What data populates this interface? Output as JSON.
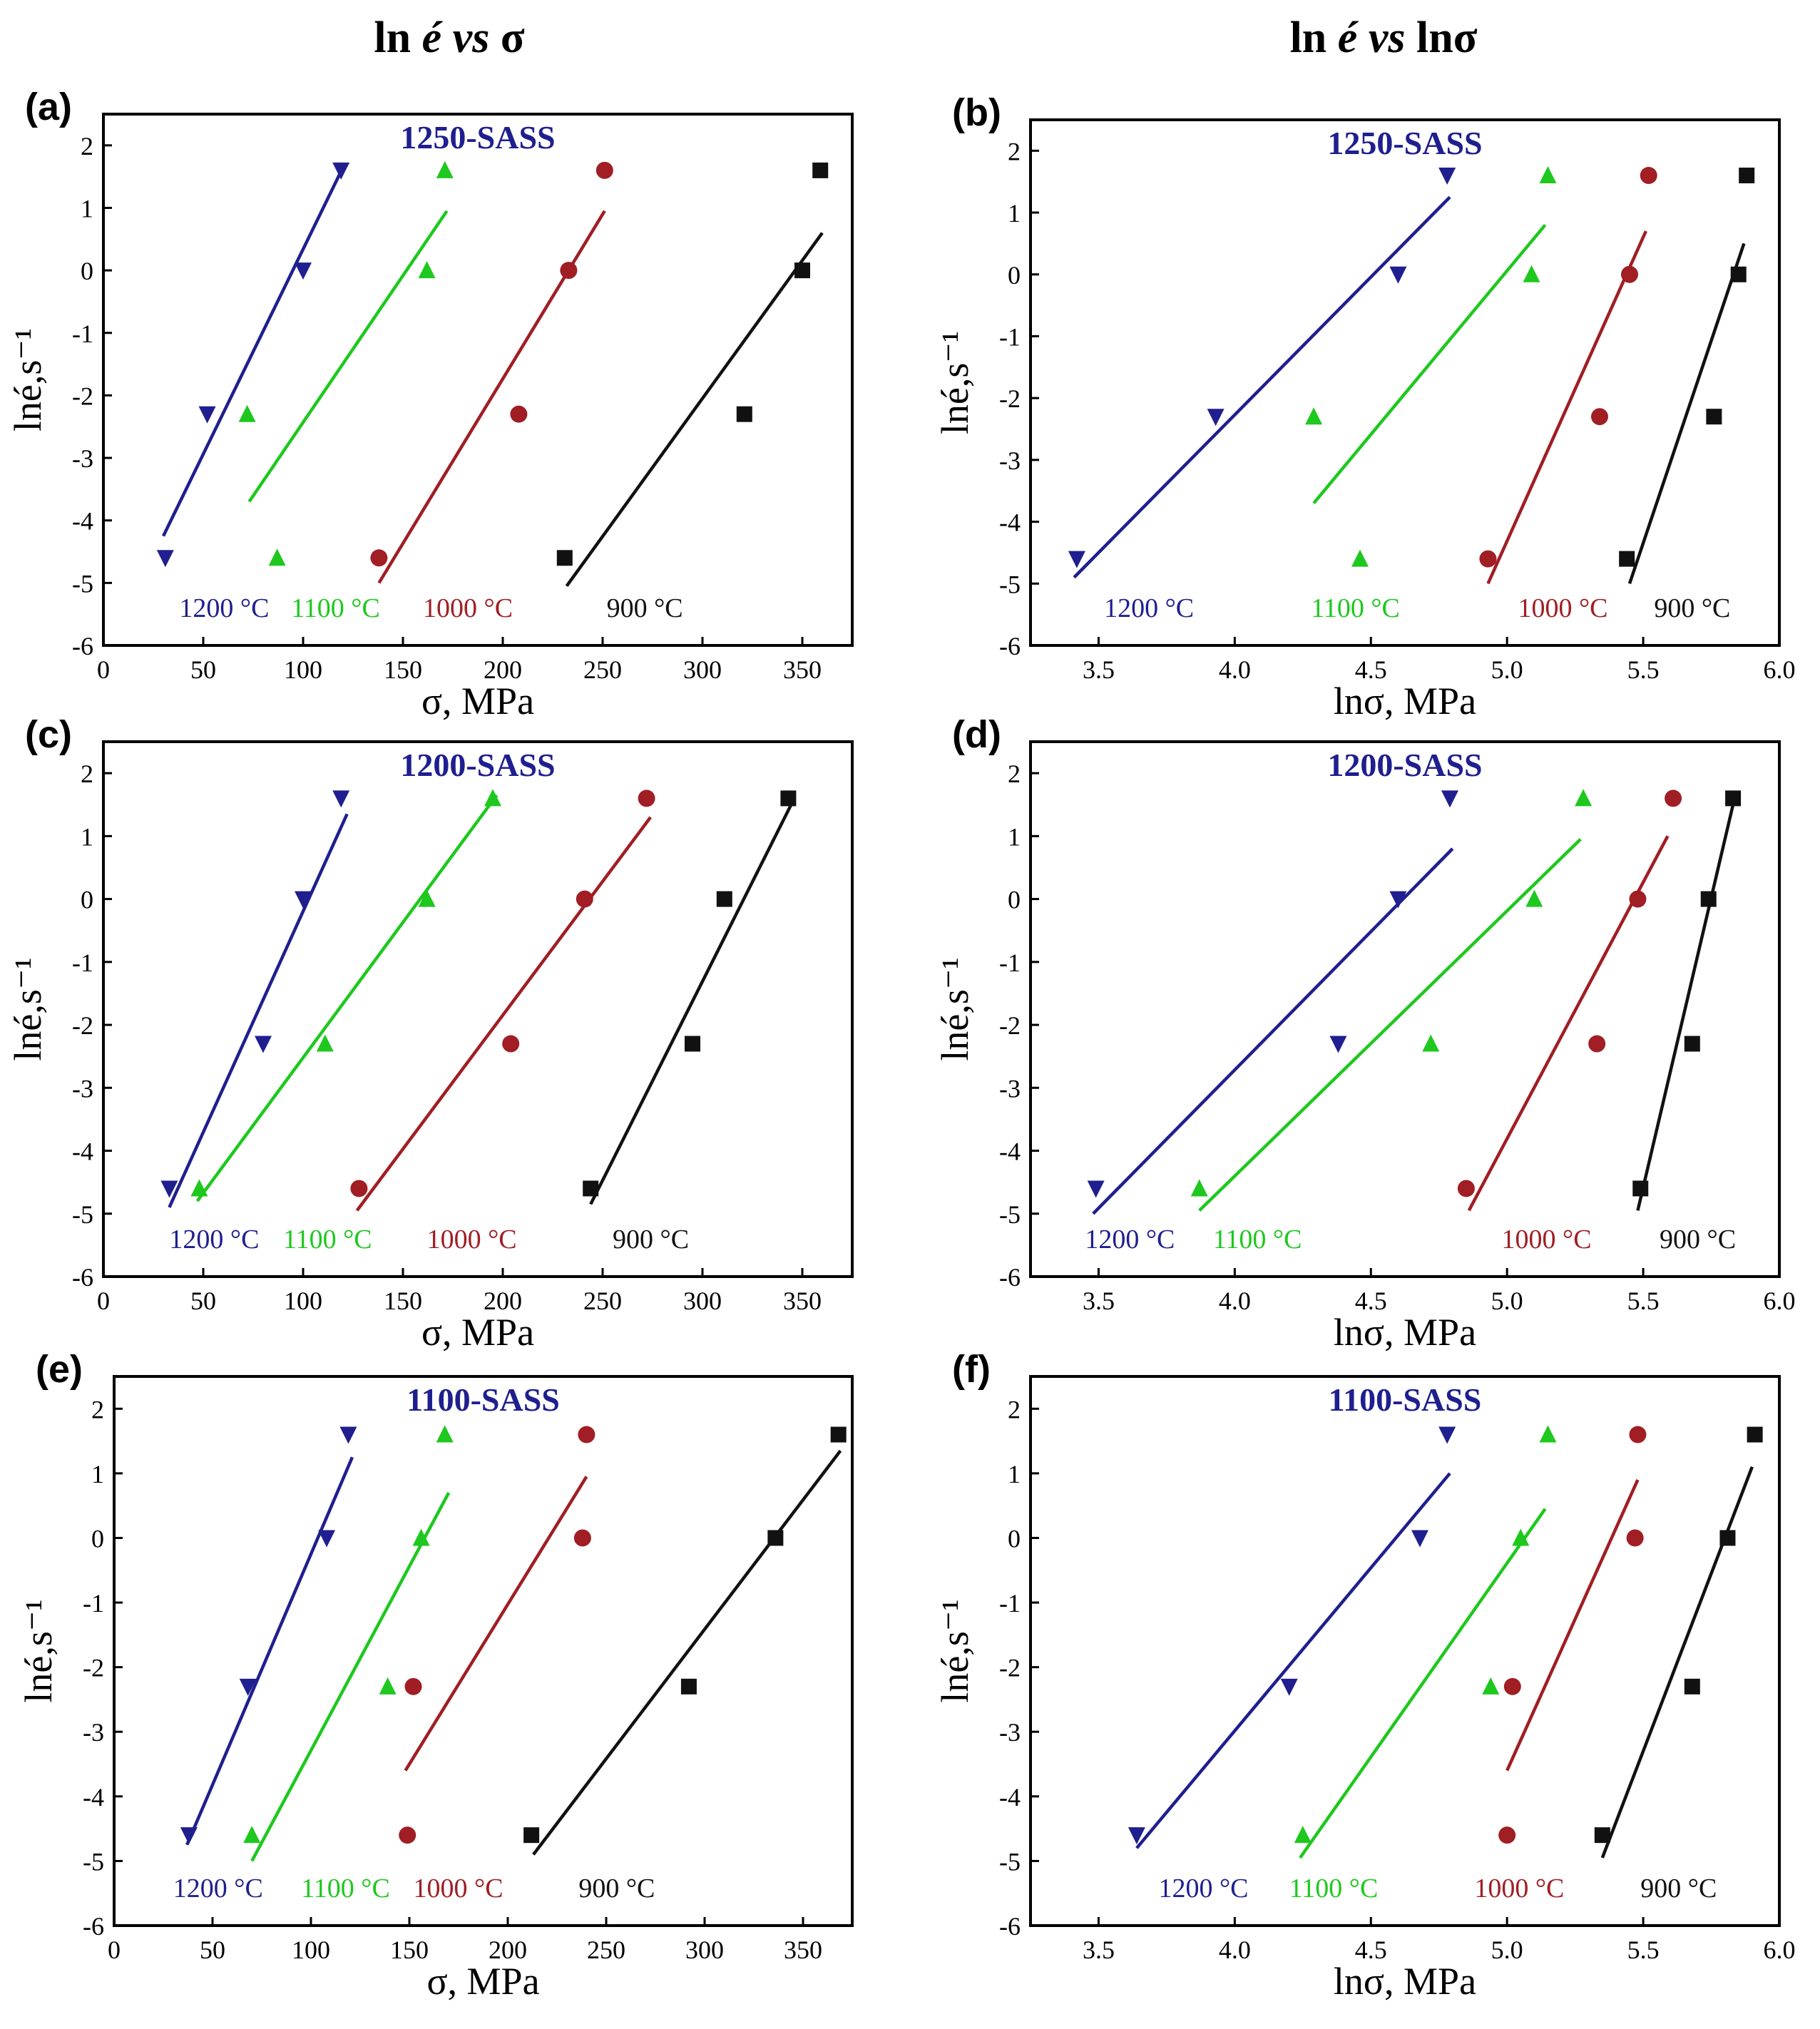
{
  "figure": {
    "col_titles": {
      "left": {
        "pre": "ln ",
        "var": "é",
        "mid": " vs ",
        "post": "σ"
      },
      "right": {
        "pre": "ln ",
        "var": "é",
        "mid": " vs ",
        "post": "lnσ"
      }
    }
  },
  "colors": {
    "1200": "#1f1f8f",
    "1100": "#1ec81e",
    "1000": "#a01e24",
    "900": "#111111"
  },
  "chart_data": [
    {
      "panel": "(a)",
      "type": "scatter",
      "title": "1250-SASS",
      "xlabel": "σ, MPa",
      "ylabel": "lné,s⁻¹",
      "xlim": [
        0,
        375
      ],
      "ylim": [
        -6,
        2.5
      ],
      "xticks": [
        0,
        50,
        100,
        150,
        200,
        250,
        300,
        350
      ],
      "xtick_labels": [
        "0",
        "50",
        "100",
        "150",
        "200",
        "250",
        "300",
        "350"
      ],
      "yticks": [
        2,
        1,
        0,
        -1,
        -2,
        -3,
        -4,
        -5,
        -6
      ],
      "ytick_labels": [
        "2",
        "1",
        "0",
        "-1",
        "-2",
        "-3",
        "-4",
        "-5",
        "-6"
      ],
      "series": [
        {
          "name": "1200 °C",
          "key": "1200",
          "marker": "tri-down",
          "x": [
            31,
            52,
            100,
            119
          ],
          "y": [
            -4.6,
            -2.3,
            0,
            1.6
          ],
          "fit": [
            [
              30,
              -4.25
            ],
            [
              120,
              1.65
            ]
          ],
          "label_x": 38
        },
        {
          "name": "1100 °C",
          "key": "1100",
          "marker": "tri-up",
          "x": [
            87,
            72,
            162,
            171
          ],
          "y": [
            -4.6,
            -2.3,
            0,
            1.6
          ],
          "fit": [
            [
              73,
              -3.7
            ],
            [
              172,
              0.95
            ]
          ],
          "label_x": 94
        },
        {
          "name": "1000 °C",
          "key": "1000",
          "marker": "circle",
          "x": [
            138,
            208,
            233,
            251
          ],
          "y": [
            -4.6,
            -2.3,
            0,
            1.6
          ],
          "fit": [
            [
              138,
              -5.0
            ],
            [
              251,
              0.95
            ]
          ],
          "label_x": 160
        },
        {
          "name": "900 °C",
          "key": "900",
          "marker": "square",
          "x": [
            231,
            321,
            350,
            359
          ],
          "y": [
            -4.6,
            -2.3,
            0,
            1.6
          ],
          "fit": [
            [
              232,
              -5.05
            ],
            [
              360,
              0.6
            ]
          ],
          "label_x": 252
        }
      ]
    },
    {
      "panel": "(b)",
      "type": "scatter",
      "title": "1250-SASS",
      "xlabel": "lnσ, MPa",
      "ylabel": "lné,s⁻¹",
      "xlim": [
        3.25,
        6.0
      ],
      "ylim": [
        -6,
        2.5
      ],
      "xticks": [
        3.5,
        4.0,
        4.5,
        5.0,
        5.5,
        6.0
      ],
      "xtick_labels": [
        "3.5",
        "4.0",
        "4.5",
        "5.0",
        "5.5",
        "6.0"
      ],
      "yticks": [
        2,
        1,
        0,
        -1,
        -2,
        -3,
        -4,
        -5,
        -6
      ],
      "ytick_labels": [
        "2",
        "1",
        "0",
        "-1",
        "-2",
        "-3",
        "-4",
        "-5",
        "-6"
      ],
      "series": [
        {
          "name": "1200 °C",
          "key": "1200",
          "marker": "tri-down",
          "x": [
            3.42,
            3.93,
            4.6,
            4.78
          ],
          "y": [
            -4.6,
            -2.3,
            0,
            1.6
          ],
          "fit": [
            [
              3.41,
              -4.9
            ],
            [
              4.79,
              1.25
            ]
          ],
          "label_x": 3.52
        },
        {
          "name": "1100 °C",
          "key": "1100",
          "marker": "tri-up",
          "x": [
            4.46,
            4.29,
            5.09,
            5.15
          ],
          "y": [
            -4.6,
            -2.3,
            0,
            1.6
          ],
          "fit": [
            [
              4.29,
              -3.7
            ],
            [
              5.14,
              0.8
            ]
          ],
          "label_x": 4.28
        },
        {
          "name": "1000 °C",
          "key": "1000",
          "marker": "circle",
          "x": [
            4.93,
            5.34,
            5.45,
            5.52
          ],
          "y": [
            -4.6,
            -2.3,
            0,
            1.6
          ],
          "fit": [
            [
              4.93,
              -5.0
            ],
            [
              5.51,
              0.7
            ]
          ],
          "label_x": 5.04
        },
        {
          "name": "900 °C",
          "key": "900",
          "marker": "square",
          "x": [
            5.44,
            5.76,
            5.85,
            5.88
          ],
          "y": [
            -4.6,
            -2.3,
            0,
            1.6
          ],
          "fit": [
            [
              5.45,
              -5.0
            ],
            [
              5.87,
              0.5
            ]
          ],
          "label_x": 5.54
        }
      ]
    },
    {
      "panel": "(c)",
      "type": "scatter",
      "title": "1200-SASS",
      "xlabel": "σ, MPa",
      "ylabel": "lné,s⁻¹",
      "xlim": [
        0,
        375
      ],
      "ylim": [
        -6,
        2.5
      ],
      "xticks": [
        0,
        50,
        100,
        150,
        200,
        250,
        300,
        350
      ],
      "xtick_labels": [
        "0",
        "50",
        "100",
        "150",
        "200",
        "250",
        "300",
        "350"
      ],
      "yticks": [
        2,
        1,
        0,
        -1,
        -2,
        -3,
        -4,
        -5,
        -6
      ],
      "ytick_labels": [
        "2",
        "1",
        "0",
        "-1",
        "-2",
        "-3",
        "-4",
        "-5",
        "-6"
      ],
      "series": [
        {
          "name": "1200 °C",
          "key": "1200",
          "marker": "tri-down",
          "x": [
            33,
            80,
            100,
            119
          ],
          "y": [
            -4.6,
            -2.3,
            0,
            1.6
          ],
          "fit": [
            [
              33,
              -4.9
            ],
            [
              122,
              1.35
            ]
          ],
          "label_x": 33
        },
        {
          "name": "1100 °C",
          "key": "1100",
          "marker": "tri-up",
          "x": [
            48,
            111,
            162,
            195
          ],
          "y": [
            -4.6,
            -2.3,
            0,
            1.6
          ],
          "fit": [
            [
              47,
              -4.8
            ],
            [
              197,
              1.65
            ]
          ],
          "label_x": 90
        },
        {
          "name": "1000 °C",
          "key": "1000",
          "marker": "circle",
          "x": [
            128,
            204,
            241,
            272
          ],
          "y": [
            -4.6,
            -2.3,
            0,
            1.6
          ],
          "fit": [
            [
              127,
              -4.95
            ],
            [
              274,
              1.3
            ]
          ],
          "label_x": 162
        },
        {
          "name": "900 °C",
          "key": "900",
          "marker": "square",
          "x": [
            244,
            295,
            311,
            343
          ],
          "y": [
            -4.6,
            -2.3,
            0,
            1.6
          ],
          "fit": [
            [
              244,
              -4.85
            ],
            [
              346,
              1.6
            ]
          ],
          "label_x": 255
        }
      ]
    },
    {
      "panel": "(d)",
      "type": "scatter",
      "title": "1200-SASS",
      "xlabel": "lnσ, MPa",
      "ylabel": "lné,s⁻¹",
      "xlim": [
        3.25,
        6.0
      ],
      "ylim": [
        -6,
        2.5
      ],
      "xticks": [
        3.5,
        4.0,
        4.5,
        5.0,
        5.5,
        6.0
      ],
      "xtick_labels": [
        "3.5",
        "4.0",
        "4.5",
        "5.0",
        "5.5",
        "6.0"
      ],
      "yticks": [
        2,
        1,
        0,
        -1,
        -2,
        -3,
        -4,
        -5,
        -6
      ],
      "ytick_labels": [
        "2",
        "1",
        "0",
        "-1",
        "-2",
        "-3",
        "-4",
        "-5",
        "-6"
      ],
      "series": [
        {
          "name": "1200 °C",
          "key": "1200",
          "marker": "tri-down",
          "x": [
            3.49,
            4.38,
            4.6,
            4.79
          ],
          "y": [
            -4.6,
            -2.3,
            0,
            1.6
          ],
          "fit": [
            [
              3.48,
              -5.0
            ],
            [
              4.8,
              0.8
            ]
          ],
          "label_x": 3.45
        },
        {
          "name": "1100 °C",
          "key": "1100",
          "marker": "tri-up",
          "x": [
            3.87,
            4.72,
            5.1,
            5.28
          ],
          "y": [
            -4.6,
            -2.3,
            0,
            1.6
          ],
          "fit": [
            [
              3.87,
              -4.95
            ],
            [
              5.27,
              0.95
            ]
          ],
          "label_x": 3.92
        },
        {
          "name": "1000 °C",
          "key": "1000",
          "marker": "circle",
          "x": [
            4.85,
            5.33,
            5.48,
            5.61
          ],
          "y": [
            -4.6,
            -2.3,
            0,
            1.6
          ],
          "fit": [
            [
              4.86,
              -4.95
            ],
            [
              5.59,
              1.0
            ]
          ],
          "label_x": 4.98
        },
        {
          "name": "900 °C",
          "key": "900",
          "marker": "square",
          "x": [
            5.49,
            5.68,
            5.74,
            5.83
          ],
          "y": [
            -4.6,
            -2.3,
            0,
            1.6
          ],
          "fit": [
            [
              5.48,
              -4.95
            ],
            [
              5.83,
              1.5
            ]
          ],
          "label_x": 5.56
        }
      ]
    },
    {
      "panel": "(e)",
      "type": "scatter",
      "title": "1100-SASS",
      "xlabel": "σ, MPa",
      "ylabel": "lné,s⁻¹",
      "xlim": [
        0,
        375
      ],
      "ylim": [
        -6,
        2.5
      ],
      "xticks": [
        0,
        50,
        100,
        150,
        200,
        250,
        300,
        350
      ],
      "xtick_labels": [
        "0",
        "50",
        "100",
        "150",
        "200",
        "250",
        "300",
        "350"
      ],
      "yticks": [
        2,
        1,
        0,
        -1,
        -2,
        -3,
        -4,
        -5,
        -6
      ],
      "ytick_labels": [
        "2",
        "1",
        "0",
        "-1",
        "-2",
        "-3",
        "-4",
        "-5",
        "-6"
      ],
      "series": [
        {
          "name": "1200 °C",
          "key": "1200",
          "marker": "tri-down",
          "x": [
            38,
            68,
            108,
            119
          ],
          "y": [
            -4.6,
            -2.3,
            0,
            1.6
          ],
          "fit": [
            [
              37,
              -4.75
            ],
            [
              121,
              1.25
            ]
          ],
          "label_x": 30
        },
        {
          "name": "1100 °C",
          "key": "1100",
          "marker": "tri-up",
          "x": [
            70,
            139,
            156,
            168
          ],
          "y": [
            -4.6,
            -2.3,
            0,
            1.6
          ],
          "fit": [
            [
              70,
              -5.0
            ],
            [
              170,
              0.7
            ]
          ],
          "label_x": 95
        },
        {
          "name": "1000 °C",
          "key": "1000",
          "marker": "circle",
          "x": [
            149,
            152,
            238,
            240
          ],
          "y": [
            -4.6,
            -2.3,
            0,
            1.6
          ],
          "fit": [
            [
              148,
              -3.6
            ],
            [
              240,
              0.95
            ]
          ],
          "label_x": 152
        },
        {
          "name": "900 °C",
          "key": "900",
          "marker": "square",
          "x": [
            212,
            292,
            336,
            368
          ],
          "y": [
            -4.6,
            -2.3,
            0,
            1.6
          ],
          "fit": [
            [
              213,
              -4.9
            ],
            [
              369,
              1.35
            ]
          ],
          "label_x": 236
        }
      ]
    },
    {
      "panel": "(f)",
      "type": "scatter",
      "title": "1100-SASS",
      "xlabel": "lnσ, MPa",
      "ylabel": "lné,s⁻¹",
      "xlim": [
        3.25,
        6.0
      ],
      "ylim": [
        -6,
        2.5
      ],
      "xticks": [
        3.5,
        4.0,
        4.5,
        5.0,
        5.5,
        6.0
      ],
      "xtick_labels": [
        "3.5",
        "4.0",
        "4.5",
        "5.0",
        "5.5",
        "6.0"
      ],
      "yticks": [
        2,
        1,
        0,
        -1,
        -2,
        -3,
        -4,
        -5,
        -6
      ],
      "ytick_labels": [
        "2",
        "1",
        "0",
        "-1",
        "-2",
        "-3",
        "-4",
        "-5",
        "-6"
      ],
      "series": [
        {
          "name": "1200 °C",
          "key": "1200",
          "marker": "tri-down",
          "x": [
            3.64,
            4.2,
            4.68,
            4.78
          ],
          "y": [
            -4.6,
            -2.3,
            0,
            1.6
          ],
          "fit": [
            [
              3.64,
              -4.8
            ],
            [
              4.79,
              1.0
            ]
          ],
          "label_x": 3.72
        },
        {
          "name": "1100 °C",
          "key": "1100",
          "marker": "tri-up",
          "x": [
            4.25,
            4.94,
            5.05,
            5.15
          ],
          "y": [
            -4.6,
            -2.3,
            0,
            1.6
          ],
          "fit": [
            [
              4.24,
              -4.95
            ],
            [
              5.14,
              0.45
            ]
          ],
          "label_x": 4.2
        },
        {
          "name": "1000 °C",
          "key": "1000",
          "marker": "circle",
          "x": [
            5.0,
            5.02,
            5.47,
            5.48
          ],
          "y": [
            -4.6,
            -2.3,
            0,
            1.6
          ],
          "fit": [
            [
              5.0,
              -3.6
            ],
            [
              5.48,
              0.9
            ]
          ],
          "label_x": 4.88
        },
        {
          "name": "900 °C",
          "key": "900",
          "marker": "square",
          "x": [
            5.35,
            5.68,
            5.81,
            5.91
          ],
          "y": [
            -4.6,
            -2.3,
            0,
            1.6
          ],
          "fit": [
            [
              5.35,
              -4.95
            ],
            [
              5.9,
              1.1
            ]
          ],
          "label_x": 5.49
        }
      ]
    }
  ]
}
